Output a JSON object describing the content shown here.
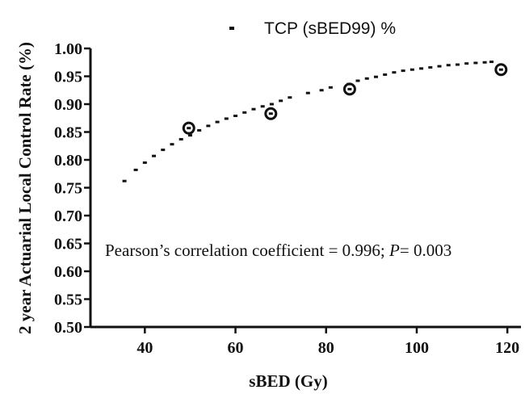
{
  "chart_data": {
    "type": "scatter",
    "title": "",
    "xlabel": "sBED (Gy)",
    "ylabel": "2 year Actuarial Local Control Rate (%)",
    "xlim": [
      28,
      123
    ],
    "ylim": [
      0.5,
      1.0
    ],
    "x_ticks": [
      40,
      60,
      80,
      100,
      120
    ],
    "y_ticks": [
      0.5,
      0.55,
      0.6,
      0.65,
      0.7,
      0.75,
      0.8,
      0.85,
      0.9,
      0.95,
      1.0
    ],
    "x_tick_labels": [
      "40",
      "60",
      "80",
      "100",
      "120"
    ],
    "y_tick_labels": [
      "0.50",
      "0.55",
      "0.60",
      "0.65",
      "0.70",
      "0.75",
      "0.80",
      "0.85",
      "0.90",
      "0.95",
      "1.00"
    ],
    "grid": false,
    "legend": {
      "placement": "top",
      "entries": [
        {
          "label": "TCP (sBED99) %",
          "marker": "small-square"
        }
      ]
    },
    "series": [
      {
        "name": "TCP (sBED99) %",
        "style": "dotted-curve",
        "color": "#111111",
        "x": [
          35.5,
          38,
          40,
          42,
          44,
          46,
          48,
          50,
          52,
          54,
          56,
          58,
          60,
          62,
          64,
          66,
          68,
          70,
          72,
          76,
          79,
          81,
          85,
          87,
          89,
          91,
          93,
          95,
          97,
          99,
          101,
          103,
          105,
          107,
          109,
          111,
          113,
          115,
          116.5
        ],
        "y": [
          0.762,
          0.782,
          0.795,
          0.807,
          0.818,
          0.828,
          0.837,
          0.844,
          0.853,
          0.861,
          0.868,
          0.874,
          0.879,
          0.885,
          0.891,
          0.896,
          0.9,
          0.906,
          0.912,
          0.92,
          0.925,
          0.93,
          0.936,
          0.942,
          0.946,
          0.949,
          0.953,
          0.957,
          0.96,
          0.962,
          0.964,
          0.966,
          0.968,
          0.97,
          0.971,
          0.973,
          0.974,
          0.975,
          0.976
        ]
      },
      {
        "name": "",
        "style": "ringed-points",
        "color": "#111111",
        "x": [
          49.7,
          67.8,
          85.2,
          118.6
        ],
        "y": [
          0.857,
          0.883,
          0.927,
          0.962
        ]
      }
    ],
    "annotation": {
      "prefix": "Pearson’s correlation coefficient = 0.996; ",
      "p_symbol": "P",
      "suffix": "= 0.003"
    }
  }
}
